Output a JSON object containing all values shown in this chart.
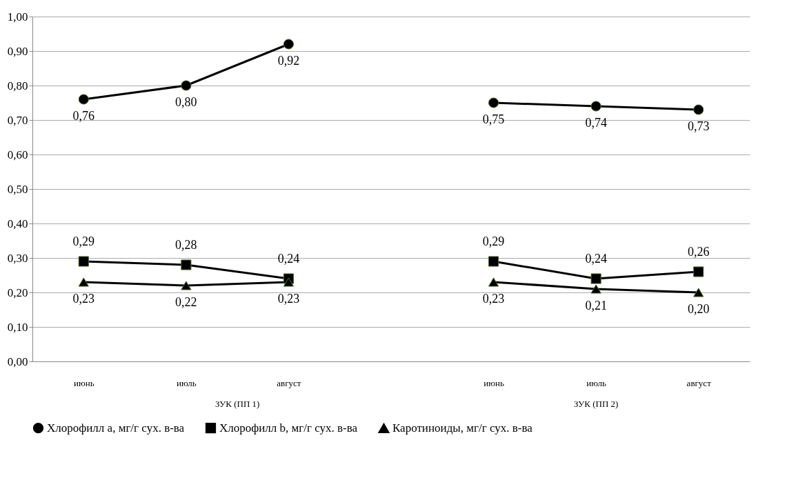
{
  "chart_data": {
    "type": "line",
    "categories": [
      "июнь",
      "июль",
      "август",
      null,
      "июнь",
      "июль",
      "август"
    ],
    "annotations": [
      "ЗУК (ПП 1)",
      "ЗУК (ПП 2)"
    ],
    "series": [
      {
        "name": "Хлорофилл a, мг/г сух. в-ва",
        "color": "#000000",
        "marker": "circle",
        "values": [
          0.76,
          0.8,
          0.92,
          null,
          0.75,
          0.74,
          0.73
        ],
        "value_labels": [
          "0,76",
          "0,80",
          "0,92",
          null,
          "0,75",
          "0,74",
          "0,73"
        ]
      },
      {
        "name": "Хлорофилл b, мг/г сух. в-ва",
        "color": "#000000",
        "marker": "square",
        "values": [
          0.29,
          0.28,
          0.24,
          null,
          0.29,
          0.24,
          0.26
        ],
        "value_labels": [
          "0,29",
          "0,28",
          "0,24",
          null,
          "0,29",
          "0,24",
          "0,26"
        ]
      },
      {
        "name": "Каротиноиды, мг/г сух. в-ва",
        "color": "#000000",
        "marker": "triangle",
        "values": [
          0.23,
          0.22,
          0.23,
          null,
          0.23,
          0.21,
          0.2
        ],
        "value_labels": [
          "0,23",
          "0,22",
          "0,23",
          null,
          "0,23",
          "0,21",
          "0,20"
        ]
      }
    ],
    "ylim": [
      0,
      1
    ],
    "yticks": [
      {
        "value": 0,
        "label": "0,00"
      },
      {
        "value": 0.1,
        "label": "0,10"
      },
      {
        "value": 0.2,
        "label": "0,20"
      },
      {
        "value": 0.3,
        "label": "0,30"
      },
      {
        "value": 0.4,
        "label": "0,40"
      },
      {
        "value": 0.5,
        "label": "0,50"
      },
      {
        "value": 0.6,
        "label": "0,60"
      },
      {
        "value": 0.7,
        "label": "0,70"
      },
      {
        "value": 0.8,
        "label": "0,80"
      },
      {
        "value": 0.9,
        "label": "0,90"
      },
      {
        "value": 1,
        "label": "1,00"
      }
    ],
    "grid": "y",
    "legend": "bottom",
    "line_style": "solid"
  }
}
